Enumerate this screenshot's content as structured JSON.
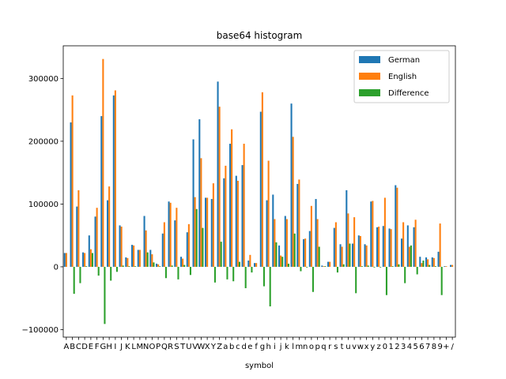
{
  "chart_data": {
    "type": "bar",
    "title": "base64 histogram",
    "xlabel": "symbol",
    "ylabel": "",
    "ylim": [
      -112000,
      352000
    ],
    "yticks": [
      -100000,
      0,
      100000,
      200000,
      300000
    ],
    "ytick_labels": [
      "−100000",
      "0",
      "100000",
      "200000",
      "300000"
    ],
    "grid": false,
    "legend_position": "top-right",
    "categories": [
      "A",
      "B",
      "C",
      "D",
      "E",
      "F",
      "G",
      "H",
      "I",
      "J",
      "K",
      "L",
      "M",
      "N",
      "O",
      "P",
      "Q",
      "R",
      "S",
      "T",
      "U",
      "V",
      "W",
      "X",
      "Y",
      "Z",
      "a",
      "b",
      "c",
      "d",
      "e",
      "f",
      "g",
      "h",
      "i",
      "j",
      "k",
      "l",
      "m",
      "n",
      "o",
      "p",
      "q",
      "r",
      "s",
      "t",
      "u",
      "v",
      "w",
      "x",
      "y",
      "z",
      "0",
      "1",
      "2",
      "3",
      "4",
      "5",
      "6",
      "7",
      "8",
      "9",
      "+",
      "/"
    ],
    "series": [
      {
        "name": "German",
        "color": "#1f77b4",
        "values": [
          22000,
          230000,
          96000,
          23000,
          50000,
          80000,
          240000,
          106000,
          273000,
          66000,
          15000,
          35000,
          27000,
          81000,
          27000,
          5000,
          53000,
          104000,
          74000,
          16000,
          55000,
          203000,
          235000,
          110000,
          108000,
          295000,
          141000,
          196000,
          145000,
          162000,
          10000,
          6000,
          247000,
          106000,
          115000,
          34000,
          81000,
          260000,
          132000,
          44000,
          57000,
          108000,
          2000,
          8000,
          62000,
          36000,
          122000,
          37000,
          50000,
          36000,
          104000,
          63000,
          65000,
          61000,
          130000,
          45000,
          66000,
          63000,
          16000,
          15000,
          15000,
          24000,
          1000,
          3000
        ]
      },
      {
        "name": "English",
        "color": "#ff7f0e",
        "values": [
          22000,
          273000,
          122000,
          22000,
          28000,
          94000,
          331000,
          128000,
          281000,
          64000,
          14000,
          34000,
          27000,
          58000,
          20000,
          4000,
          71000,
          102000,
          94000,
          13000,
          68000,
          111000,
          173000,
          110000,
          133000,
          255000,
          161000,
          219000,
          137000,
          196000,
          19000,
          6000,
          278000,
          169000,
          76000,
          18000,
          76000,
          207000,
          139000,
          45000,
          97000,
          76000,
          1000,
          8000,
          71000,
          32000,
          85000,
          79000,
          49000,
          34000,
          105000,
          64000,
          110000,
          60000,
          126000,
          71000,
          32000,
          75000,
          6000,
          12000,
          14000,
          69000,
          1000,
          3000
        ]
      },
      {
        "name": "Difference",
        "color": "#2ca02c",
        "values": [
          0,
          -43000,
          -26000,
          1000,
          22000,
          -14000,
          -91000,
          -22000,
          -8000,
          2000,
          1000,
          1000,
          0,
          23000,
          7000,
          1000,
          -18000,
          2000,
          -20000,
          3000,
          -13000,
          92000,
          62000,
          0,
          -25000,
          40000,
          -20000,
          -23000,
          8000,
          -34000,
          -9000,
          0,
          -31000,
          -63000,
          39000,
          16000,
          5000,
          53000,
          -7000,
          -1000,
          -40000,
          32000,
          1000,
          0,
          -9000,
          4000,
          37000,
          -42000,
          1000,
          2000,
          -1000,
          -1000,
          -45000,
          1000,
          4000,
          -26000,
          34000,
          -12000,
          10000,
          3000,
          1000,
          -45000,
          0,
          0
        ]
      }
    ]
  }
}
